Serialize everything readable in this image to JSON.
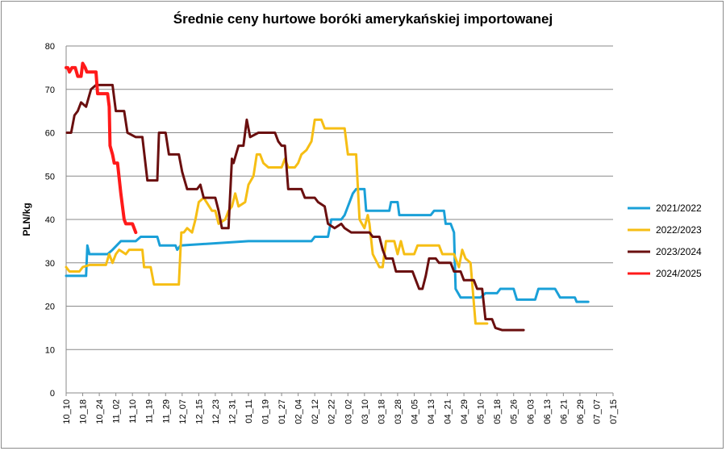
{
  "chart_data": {
    "type": "line",
    "title": "Średnie ceny hurtowe boróki amerykańskiej importowanej",
    "ylabel": "PLN/kg",
    "xlabel": "",
    "ylim": [
      0,
      80
    ],
    "yticks": [
      0,
      10,
      20,
      30,
      40,
      50,
      60,
      70,
      80
    ],
    "grid": "horizontal",
    "legend_position": "right",
    "x_tick_labels": [
      "10_10",
      "10_18",
      "10_24",
      "11_02",
      "11_10",
      "11_19",
      "11_29",
      "12_07",
      "12_15",
      "12_23",
      "12_31",
      "01_11",
      "01_19",
      "01_27",
      "02_04",
      "02_12",
      "02_22",
      "03_02",
      "03_10",
      "03_18",
      "03_28",
      "04_05",
      "04_13",
      "04_21",
      "04_29",
      "05_10",
      "05_18",
      "05_26",
      "06_03",
      "06_13",
      "06_21",
      "06_29",
      "07_07",
      "07_15"
    ],
    "series": [
      {
        "name": "2021/2022",
        "color": "#1aa0d8",
        "width": 3,
        "points": [
          [
            0,
            27
          ],
          [
            1.2,
            27
          ],
          [
            1.28,
            34
          ],
          [
            1.4,
            32
          ],
          [
            2.5,
            32
          ],
          [
            2.8,
            33
          ],
          [
            3.3,
            35
          ],
          [
            4.2,
            35
          ],
          [
            4.5,
            36
          ],
          [
            5.5,
            36
          ],
          [
            5.65,
            34
          ],
          [
            6.6,
            34
          ],
          [
            6.7,
            33
          ],
          [
            6.9,
            34
          ],
          [
            11,
            35
          ],
          [
            14.8,
            35
          ],
          [
            15,
            36
          ],
          [
            15.8,
            36
          ],
          [
            16.0,
            40
          ],
          [
            16.6,
            40
          ],
          [
            16.8,
            41
          ],
          [
            17.0,
            43
          ],
          [
            17.3,
            46
          ],
          [
            17.5,
            47
          ],
          [
            18.0,
            47
          ],
          [
            18.1,
            42
          ],
          [
            19.5,
            42
          ],
          [
            19.6,
            44
          ],
          [
            20.0,
            44
          ],
          [
            20.1,
            41
          ],
          [
            22.0,
            41
          ],
          [
            22.2,
            42
          ],
          [
            22.8,
            42
          ],
          [
            22.9,
            39
          ],
          [
            23.2,
            39
          ],
          [
            23.4,
            37
          ],
          [
            23.5,
            24
          ],
          [
            23.8,
            22
          ],
          [
            25.0,
            22
          ],
          [
            25.3,
            23
          ],
          [
            26.0,
            23
          ],
          [
            26.2,
            24
          ],
          [
            27.0,
            24
          ],
          [
            27.2,
            21.5
          ],
          [
            28.3,
            21.5
          ],
          [
            28.5,
            24
          ],
          [
            29.5,
            24
          ],
          [
            29.8,
            22
          ],
          [
            30.7,
            22
          ],
          [
            30.8,
            21
          ],
          [
            31.5,
            21
          ]
        ]
      },
      {
        "name": "2022/2023",
        "color": "#f6be14",
        "width": 3,
        "points": [
          [
            0,
            29
          ],
          [
            0.2,
            28
          ],
          [
            0.8,
            28
          ],
          [
            1.0,
            29
          ],
          [
            1.4,
            29.5
          ],
          [
            2.4,
            29.5
          ],
          [
            2.6,
            32
          ],
          [
            2.8,
            30
          ],
          [
            3.0,
            32
          ],
          [
            3.2,
            33
          ],
          [
            3.6,
            32
          ],
          [
            3.8,
            33
          ],
          [
            4.6,
            33
          ],
          [
            4.7,
            29
          ],
          [
            5.1,
            29
          ],
          [
            5.3,
            25
          ],
          [
            6.8,
            25
          ],
          [
            6.95,
            37
          ],
          [
            7.1,
            37
          ],
          [
            7.3,
            38
          ],
          [
            7.6,
            37
          ],
          [
            7.8,
            40
          ],
          [
            8.0,
            44
          ],
          [
            8.3,
            45
          ],
          [
            8.8,
            42
          ],
          [
            9.0,
            42
          ],
          [
            9.2,
            39
          ],
          [
            9.6,
            40
          ],
          [
            9.8,
            42
          ],
          [
            10.0,
            43
          ],
          [
            10.2,
            46
          ],
          [
            10.4,
            43
          ],
          [
            10.8,
            44
          ],
          [
            11.0,
            48
          ],
          [
            11.3,
            50
          ],
          [
            11.5,
            55
          ],
          [
            11.7,
            55
          ],
          [
            11.9,
            53
          ],
          [
            12.2,
            52
          ],
          [
            13.0,
            52
          ],
          [
            13.2,
            54
          ],
          [
            13.4,
            52
          ],
          [
            13.8,
            52
          ],
          [
            14.0,
            53
          ],
          [
            14.2,
            55
          ],
          [
            14.5,
            56
          ],
          [
            14.8,
            58
          ],
          [
            15.0,
            63
          ],
          [
            15.4,
            63
          ],
          [
            15.6,
            61
          ],
          [
            16.8,
            61
          ],
          [
            17.0,
            55
          ],
          [
            17.5,
            55
          ],
          [
            17.7,
            40
          ],
          [
            18.0,
            38
          ],
          [
            18.2,
            41
          ],
          [
            18.3,
            39
          ],
          [
            18.5,
            32
          ],
          [
            18.9,
            29
          ],
          [
            19.1,
            29
          ],
          [
            19.3,
            35
          ],
          [
            19.8,
            35
          ],
          [
            20.0,
            32
          ],
          [
            20.2,
            35
          ],
          [
            20.4,
            32
          ],
          [
            21.0,
            32
          ],
          [
            21.2,
            34
          ],
          [
            22.5,
            34
          ],
          [
            22.7,
            32
          ],
          [
            23.4,
            32
          ],
          [
            23.6,
            30
          ],
          [
            23.7,
            29
          ],
          [
            23.9,
            33
          ],
          [
            24.1,
            31
          ],
          [
            24.4,
            30
          ],
          [
            24.7,
            16
          ],
          [
            25.0,
            16
          ],
          [
            25.4,
            16
          ]
        ]
      },
      {
        "name": "2023/2024",
        "color": "#6a0f0f",
        "width": 3,
        "points": [
          [
            0.05,
            60
          ],
          [
            0.3,
            60
          ],
          [
            0.5,
            64
          ],
          [
            0.7,
            65
          ],
          [
            0.9,
            67
          ],
          [
            1.2,
            66
          ],
          [
            1.5,
            70
          ],
          [
            1.8,
            71
          ],
          [
            2.8,
            71
          ],
          [
            3.0,
            65
          ],
          [
            3.5,
            65
          ],
          [
            3.7,
            60
          ],
          [
            4.2,
            59
          ],
          [
            4.6,
            59
          ],
          [
            4.9,
            49
          ],
          [
            5.5,
            49
          ],
          [
            5.6,
            60
          ],
          [
            6.0,
            60
          ],
          [
            6.2,
            55
          ],
          [
            6.8,
            55
          ],
          [
            7.0,
            51
          ],
          [
            7.3,
            47
          ],
          [
            7.9,
            47
          ],
          [
            8.1,
            48
          ],
          [
            8.3,
            45
          ],
          [
            9.0,
            45
          ],
          [
            9.2,
            42
          ],
          [
            9.4,
            38
          ],
          [
            9.8,
            38
          ],
          [
            10.0,
            54
          ],
          [
            10.1,
            53
          ],
          [
            10.4,
            57
          ],
          [
            10.7,
            57
          ],
          [
            10.9,
            63
          ],
          [
            11.1,
            59
          ],
          [
            11.6,
            60
          ],
          [
            12.6,
            60
          ],
          [
            12.8,
            58
          ],
          [
            13.0,
            57
          ],
          [
            13.2,
            57
          ],
          [
            13.4,
            47
          ],
          [
            14.2,
            47
          ],
          [
            14.4,
            45
          ],
          [
            15.0,
            45
          ],
          [
            15.2,
            44
          ],
          [
            15.6,
            43
          ],
          [
            15.8,
            39
          ],
          [
            16.2,
            38
          ],
          [
            16.6,
            39
          ],
          [
            16.8,
            38
          ],
          [
            17.2,
            37
          ],
          [
            18.3,
            37
          ],
          [
            18.5,
            36
          ],
          [
            18.9,
            36
          ],
          [
            19.1,
            33
          ],
          [
            19.3,
            31
          ],
          [
            19.7,
            31
          ],
          [
            19.9,
            28
          ],
          [
            20.9,
            28
          ],
          [
            21.1,
            26
          ],
          [
            21.3,
            24
          ],
          [
            21.5,
            24
          ],
          [
            21.7,
            27
          ],
          [
            21.9,
            31
          ],
          [
            22.3,
            31
          ],
          [
            22.5,
            30
          ],
          [
            23.2,
            30
          ],
          [
            23.4,
            28
          ],
          [
            23.8,
            28
          ],
          [
            24.0,
            26
          ],
          [
            24.6,
            26
          ],
          [
            24.8,
            24
          ],
          [
            25.1,
            24
          ],
          [
            25.3,
            17
          ],
          [
            25.7,
            17
          ],
          [
            25.9,
            15
          ],
          [
            26.3,
            14.5
          ],
          [
            27.6,
            14.5
          ]
        ]
      },
      {
        "name": "2024/2025",
        "color": "#ff1a1a",
        "width": 4,
        "points": [
          [
            0,
            75
          ],
          [
            0.1,
            75
          ],
          [
            0.2,
            74
          ],
          [
            0.35,
            75
          ],
          [
            0.55,
            75
          ],
          [
            0.7,
            73
          ],
          [
            0.9,
            73
          ],
          [
            1.0,
            76
          ],
          [
            1.15,
            75
          ],
          [
            1.25,
            74
          ],
          [
            1.8,
            74
          ],
          [
            1.9,
            69
          ],
          [
            2.5,
            69
          ],
          [
            2.6,
            66
          ],
          [
            2.65,
            57
          ],
          [
            2.8,
            55
          ],
          [
            2.9,
            53
          ],
          [
            3.1,
            53
          ],
          [
            3.3,
            46
          ],
          [
            3.5,
            40
          ],
          [
            3.6,
            39
          ],
          [
            4.0,
            39
          ],
          [
            4.2,
            37
          ]
        ]
      }
    ]
  }
}
